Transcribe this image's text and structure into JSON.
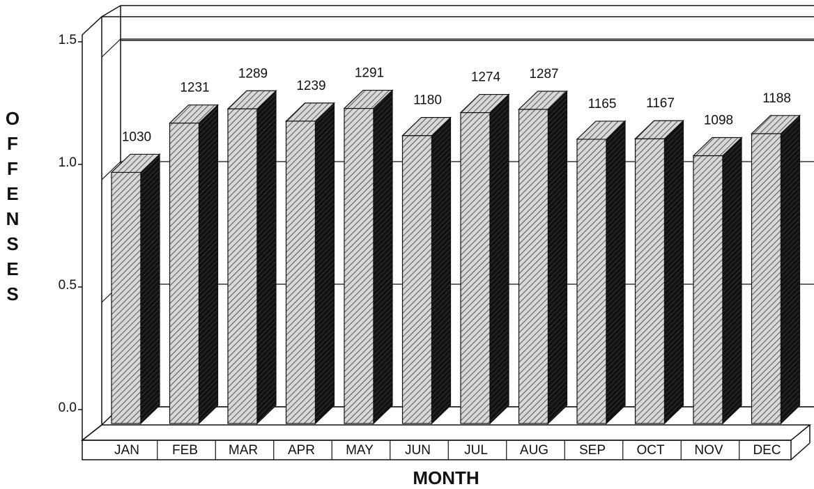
{
  "chart_data": {
    "type": "bar3d",
    "y_label": "OFFENSES",
    "x_label": "MONTH",
    "categories": [
      "JAN",
      "FEB",
      "MAR",
      "APR",
      "MAY",
      "JUN",
      "JUL",
      "AUG",
      "SEP",
      "OCT",
      "NOV",
      "DEC"
    ],
    "values": [
      1.03,
      1.231,
      1.289,
      1.239,
      1.291,
      1.18,
      1.274,
      1.287,
      1.165,
      1.167,
      1.098,
      1.188
    ],
    "value_labels": [
      "1030",
      "1231",
      "1289",
      "1239",
      "1291",
      "1180",
      "1274",
      "1287",
      "1165",
      "1167",
      "1098",
      "1188"
    ],
    "ylim": [
      0,
      1.6
    ],
    "yticks": [
      {
        "value": 0,
        "label": "0.0"
      },
      0.5,
      {
        "value": 1,
        "label": "1.0"
      },
      1.5
    ],
    "grid": true,
    "color": "#bbbbbb"
  }
}
